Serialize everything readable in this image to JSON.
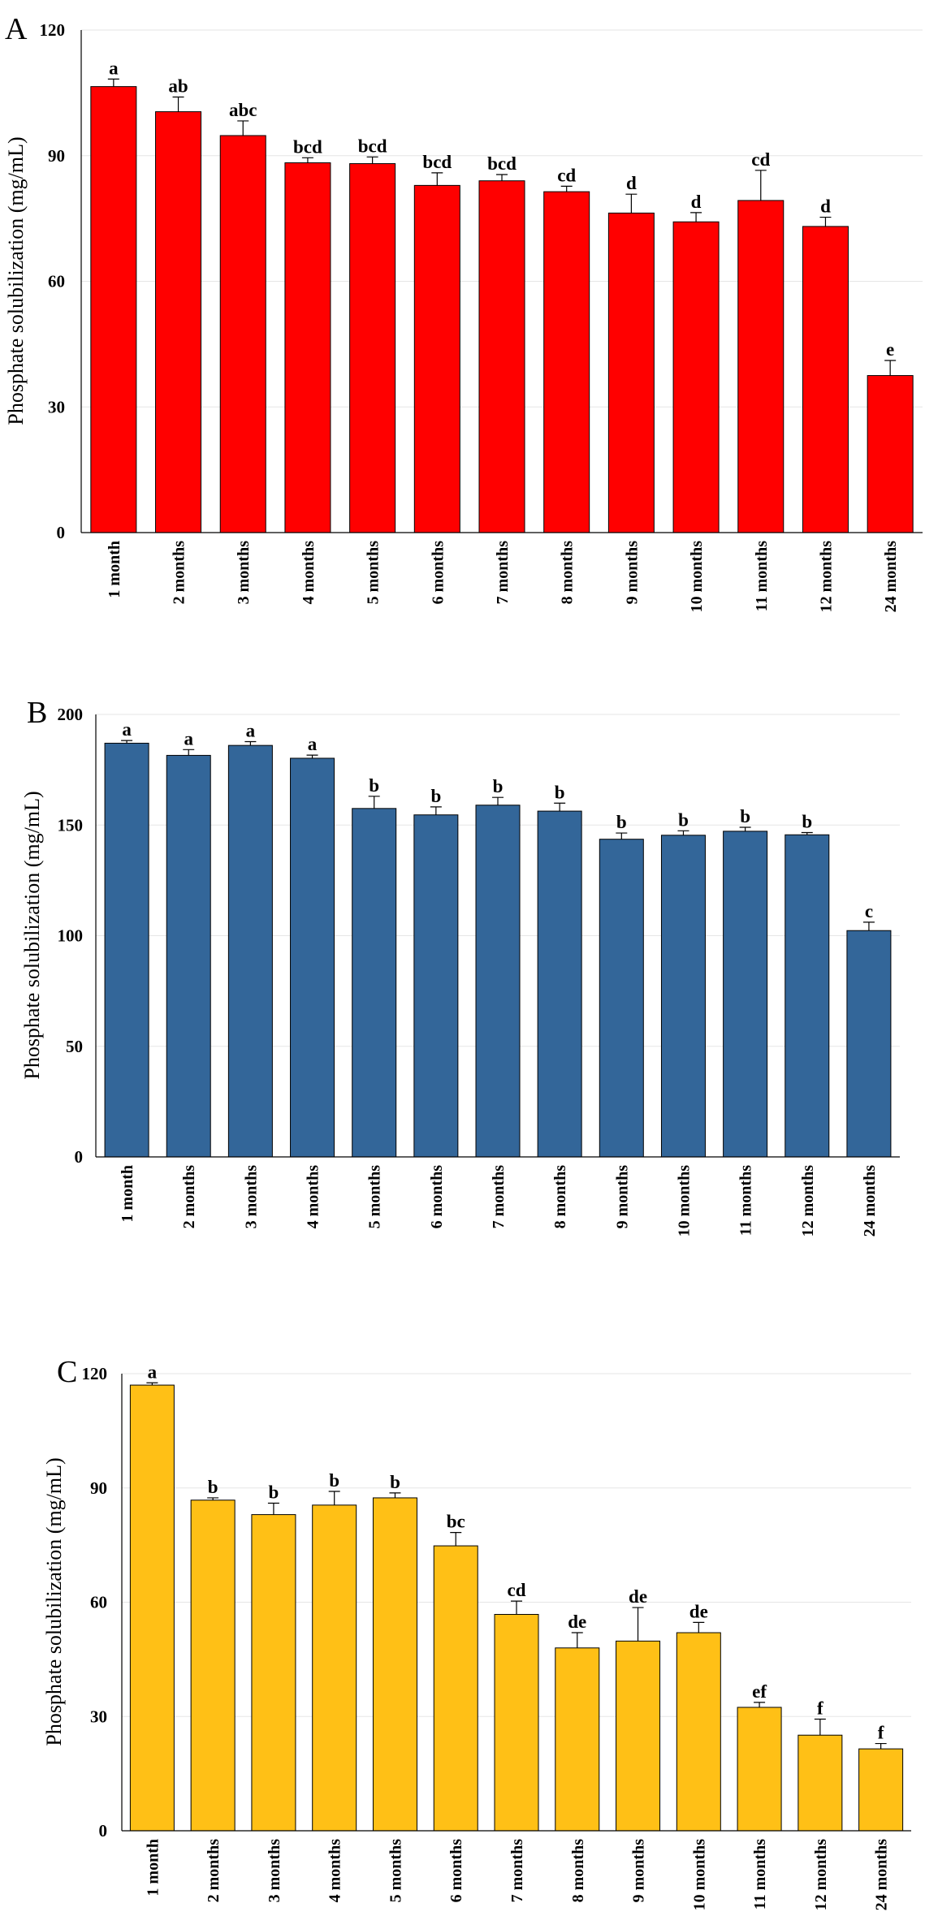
{
  "chart_data": [
    {
      "type": "bar",
      "panel_label": "A",
      "ylabel": "Phosphate solubilization (mg/mL)",
      "xlabel": "",
      "ylim": [
        0,
        120
      ],
      "yticks": [
        0,
        30,
        60,
        90,
        120
      ],
      "grid": true,
      "color": "#ff0000",
      "categories": [
        "1 month",
        "2 months",
        "3 months",
        "4 months",
        "5 months",
        "6 months",
        "7 months",
        "8 months",
        "9 months",
        "10 months",
        "11 months",
        "12 months",
        "24 months"
      ],
      "values": [
        106.5,
        100.5,
        94.8,
        88.3,
        88.1,
        82.9,
        84.0,
        81.4,
        76.3,
        74.2,
        79.3,
        73.1,
        37.5
      ],
      "errors": [
        1.8,
        3.5,
        3.5,
        1.2,
        1.6,
        3.0,
        1.5,
        1.3,
        4.5,
        2.2,
        7.2,
        2.2,
        3.6
      ],
      "significance": [
        "a",
        "ab",
        "abc",
        "bcd",
        "bcd",
        "bcd",
        "bcd",
        "cd",
        "d",
        "d",
        "cd",
        "d",
        "e"
      ]
    },
    {
      "type": "bar",
      "panel_label": "B",
      "ylabel": "Phosphate solubilization (mg/mL)",
      "xlabel": "",
      "ylim": [
        0,
        200
      ],
      "yticks": [
        0,
        50,
        100,
        150,
        200
      ],
      "grid": true,
      "color": "#336699",
      "categories": [
        "1 month",
        "2 months",
        "3 months",
        "4 months",
        "5 months",
        "6 months",
        "7 months",
        "8 months",
        "9 months",
        "10 months",
        "11 months",
        "12 months",
        "24 months"
      ],
      "values": [
        187.0,
        181.5,
        186.0,
        180.2,
        157.5,
        154.6,
        159.0,
        156.3,
        143.6,
        145.4,
        147.2,
        145.6,
        102.3
      ],
      "errors": [
        1.2,
        2.6,
        1.7,
        1.4,
        5.5,
        3.6,
        3.5,
        3.6,
        2.8,
        2.0,
        1.8,
        1.0,
        3.8
      ],
      "significance": [
        "a",
        "a",
        "a",
        "a",
        "b",
        "b",
        "b",
        "b",
        "b",
        "b",
        "b",
        "b",
        "c"
      ]
    },
    {
      "type": "bar",
      "panel_label": "C",
      "ylabel": "Phosphate solubilization (mg/mL)",
      "xlabel": "",
      "ylim": [
        0,
        120
      ],
      "yticks": [
        0,
        30,
        60,
        90,
        120
      ],
      "grid": true,
      "color": "#ffc016",
      "categories": [
        "1 month",
        "2 months",
        "3 months",
        "4 months",
        "5 months",
        "6 months",
        "7 months",
        "8 months",
        "9 months",
        "10 months",
        "11 months",
        "12 months",
        "24 months"
      ],
      "values": [
        117.0,
        86.8,
        83.0,
        85.5,
        87.4,
        74.8,
        56.8,
        48.0,
        49.8,
        52.0,
        32.4,
        25.1,
        21.5
      ],
      "errors": [
        0.6,
        0.6,
        3.0,
        3.6,
        1.3,
        3.5,
        3.5,
        4.0,
        8.8,
        2.7,
        1.3,
        4.2,
        1.4
      ],
      "significance": [
        "a",
        "b",
        "b",
        "b",
        "b",
        "bc",
        "cd",
        "de",
        "de",
        "de",
        "ef",
        "f",
        "f"
      ]
    }
  ]
}
